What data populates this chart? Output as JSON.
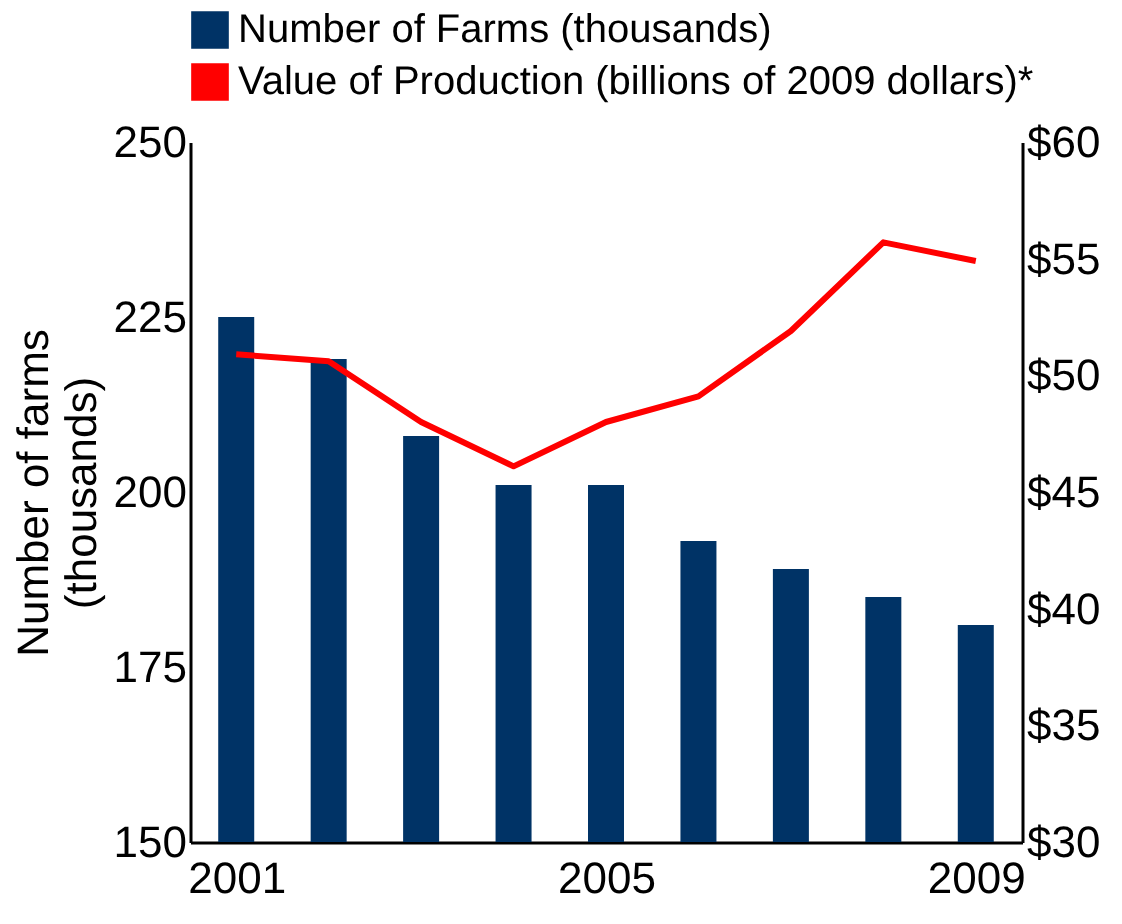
{
  "chart_data": {
    "type": "bar",
    "ylabel": "Number of farms (thousands)",
    "x": [
      2001,
      2002,
      2003,
      2004,
      2005,
      2006,
      2007,
      2008,
      2009
    ],
    "xlim": [
      2000.5,
      2009.5
    ],
    "xticks": [
      2001,
      2005,
      2009
    ],
    "ylim": [
      150,
      250
    ],
    "yticks": [
      150,
      175,
      200,
      225,
      250
    ],
    "y2lim": [
      30,
      60
    ],
    "y2ticks": [
      {
        "value": 30,
        "label": "$30"
      },
      {
        "value": 35,
        "label": "$35"
      },
      {
        "value": 40,
        "label": "$40"
      },
      {
        "value": 45,
        "label": "$45"
      },
      {
        "value": 50,
        "label": "$50"
      },
      {
        "value": 55,
        "label": "$55"
      },
      {
        "value": 60,
        "label": "$60"
      }
    ],
    "series": [
      {
        "name": "Number of Farms (thousands)",
        "color": "#003366",
        "values": [
          225,
          219,
          208,
          201,
          201,
          193,
          189,
          185,
          181
        ]
      },
      {
        "name": "Value of Production (billions of 2009 dollars)*",
        "color": "#ff0000",
        "type": "line",
        "axis": "y2",
        "values": [
          50.9,
          50.6,
          48,
          46.1,
          48,
          49.1,
          51.9,
          55.7,
          54.9
        ]
      }
    ],
    "grid": false,
    "legend": "top",
    "line_style": "solid",
    "marker": "none"
  }
}
